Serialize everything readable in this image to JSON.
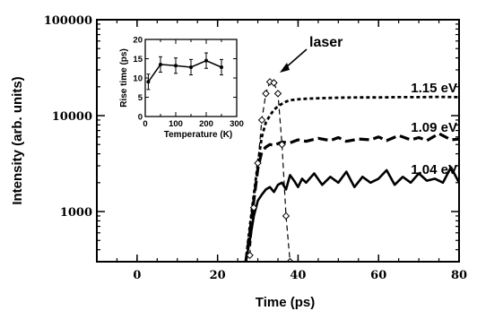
{
  "chart_data": [
    {
      "type": "line",
      "title": "",
      "xlabel": "Time (ps)",
      "ylabel": "Intensity (arb. units)",
      "xlim": [
        -10,
        80
      ],
      "ylim": [
        300,
        100000
      ],
      "yscale": "log",
      "xticks": [
        0,
        20,
        40,
        60,
        80
      ],
      "yticks": [
        1000,
        10000,
        100000
      ],
      "series": [
        {
          "name": "1.15 eV",
          "style": "dotted",
          "x": [
            27,
            28,
            29,
            30,
            31,
            32,
            33,
            34,
            35,
            36,
            37,
            38,
            40,
            42,
            45,
            50,
            55,
            60,
            65,
            70,
            75,
            80
          ],
          "y": [
            300,
            700,
            1500,
            3200,
            6000,
            8500,
            10000,
            11500,
            12500,
            13300,
            14000,
            14500,
            14800,
            15000,
            15200,
            15400,
            15500,
            15500,
            15600,
            15600,
            15700,
            15600
          ]
        },
        {
          "name": "1.09 eV",
          "style": "dashed",
          "x": [
            27,
            28,
            29,
            30,
            31,
            32,
            33,
            34,
            35,
            36,
            38,
            40,
            42,
            45,
            48,
            50,
            52,
            55,
            58,
            60,
            62,
            65,
            68,
            70,
            72,
            75,
            78,
            80
          ],
          "y": [
            300,
            600,
            1300,
            2800,
            4200,
            4700,
            5000,
            4900,
            5100,
            5300,
            5200,
            5600,
            5400,
            5800,
            5500,
            5900,
            5400,
            5700,
            5600,
            6000,
            5500,
            6200,
            5600,
            5900,
            5500,
            6500,
            5600,
            5700
          ]
        },
        {
          "name": "1.04 eV",
          "style": "solid",
          "x": [
            27,
            28,
            29,
            30,
            31,
            32,
            33,
            34,
            35,
            36,
            37,
            38,
            39,
            40,
            41,
            42,
            44,
            46,
            48,
            50,
            52,
            54,
            56,
            58,
            60,
            62,
            64,
            66,
            68,
            70,
            72,
            74,
            76,
            78,
            80
          ],
          "y": [
            300,
            500,
            900,
            1300,
            1500,
            1700,
            1800,
            1600,
            1900,
            2000,
            1700,
            2400,
            2100,
            1800,
            2200,
            2000,
            2500,
            1900,
            2300,
            2000,
            2600,
            1800,
            2300,
            2000,
            2200,
            2700,
            1900,
            2300,
            2000,
            2500,
            2100,
            2200,
            2000,
            2900,
            2000
          ]
        },
        {
          "name": "laser",
          "style": "dash-diamond",
          "x": [
            28,
            29,
            30,
            31,
            32,
            33,
            34,
            35,
            36,
            37,
            38
          ],
          "y": [
            350,
            1100,
            3200,
            9000,
            17000,
            22500,
            22000,
            17000,
            5000,
            900,
            300
          ]
        }
      ]
    },
    {
      "type": "line",
      "title": "",
      "xlabel": "Temperature (K)",
      "ylabel": "Rise time (ps)",
      "xlim": [
        0,
        300
      ],
      "ylim": [
        0,
        20
      ],
      "xticks": [
        0,
        100,
        200,
        300
      ],
      "yticks": [
        0,
        5,
        10,
        15,
        20
      ],
      "series": [
        {
          "x": [
            10,
            50,
            100,
            150,
            200,
            250
          ],
          "y": [
            9,
            13.5,
            13.2,
            12.8,
            14.5,
            12.8
          ],
          "err": [
            2,
            2,
            2,
            2,
            2,
            2
          ]
        }
      ]
    }
  ],
  "annotations": {
    "laser_label": "laser"
  }
}
